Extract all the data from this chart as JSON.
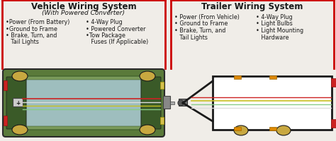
{
  "bg_color": "#f0ede8",
  "left_title": "Vehicle Wiring System",
  "left_subtitle": "(With Powered Converter)",
  "left_col1": [
    "•Power (From Battery)",
    "•Ground to Frame",
    "• Brake, Turn, and",
    "   Tail Lights"
  ],
  "left_col2": [
    "• 4-Way Plug",
    "• Powered Converter",
    "•Tow Package",
    "   Fuses (If Applicable)"
  ],
  "right_title": "Trailer Wiring System",
  "right_col1": [
    "• Power (From Vehicle)",
    "• Ground to Frame",
    "• Brake, Turn, and",
    "   Tail Lights"
  ],
  "right_col2": [
    "• 4-Way Plug",
    "• Light Bulbs",
    "• Light Mounting",
    "   Hardware"
  ],
  "red_color": "#cc0000",
  "text_color": "#1a1a1a",
  "title_fontsize": 8.5,
  "subtitle_fontsize": 6.5,
  "bullet_fontsize": 5.8,
  "car_body_color": "#5a7a3a",
  "car_inner_color": "#7a9a5a",
  "car_window_color": "#a8c8d8",
  "car_dark": "#3a5a28",
  "wheel_color": "#c8a840",
  "wire_yellow": "#c8c020",
  "wire_red": "#cc2222",
  "wire_green": "#88cc88",
  "wire_white": "#dddddd",
  "tail_light_color": "#cc2222",
  "orange_light": "#dd8800",
  "plug_color": "#888888",
  "trailer_bg": "#ffffff"
}
